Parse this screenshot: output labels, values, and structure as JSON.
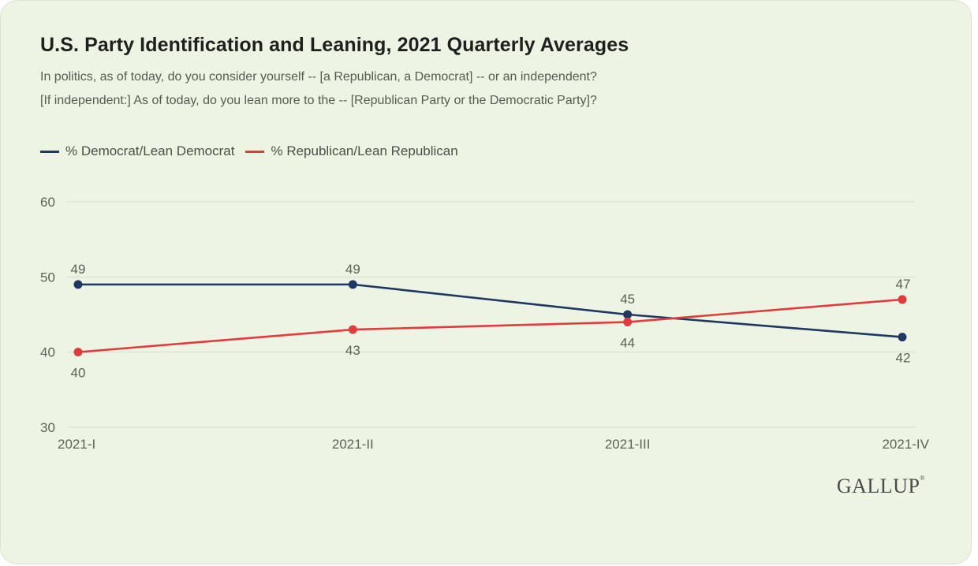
{
  "title": "U.S. Party Identification and Leaning, 2021 Quarterly Averages",
  "subtitle_line1": "In politics, as of today, do you consider yourself -- [a Republican, a Democrat] -- or an independent?",
  "subtitle_line2": "[If independent:] As of today, do you lean more to the -- [Republican Party or the Democratic Party]?",
  "logo_text": "GALLUP",
  "logo_mark": "®",
  "colors": {
    "democrat": "#1f3763",
    "republican": "#e03c3c",
    "grid": "#d6dccd",
    "axis_text": "#5c6159"
  },
  "chart_data": {
    "type": "line",
    "categories": [
      "2021-I",
      "2021-II",
      "2021-III",
      "2021-IV"
    ],
    "ylim": [
      30,
      60
    ],
    "yticks": [
      30,
      40,
      50,
      60
    ],
    "grid": true,
    "legend_placement": "top-left",
    "series": [
      {
        "name": "% Democrat/Lean Democrat",
        "values": [
          49,
          49,
          45,
          42
        ]
      },
      {
        "name": "% Republican/Lean Republican",
        "values": [
          40,
          43,
          44,
          47
        ]
      }
    ]
  }
}
